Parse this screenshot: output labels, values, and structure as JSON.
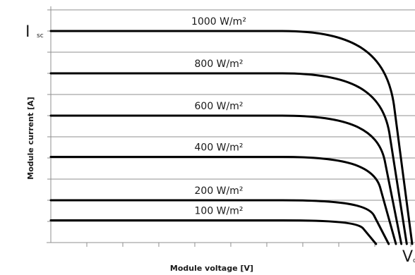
{
  "chart_data": {
    "type": "line",
    "title": "",
    "xlabel": "Module voltage [V]",
    "ylabel": "Module current [A]",
    "y_marker_label": "I",
    "y_marker_subscript": "sc",
    "x_marker_label": "V",
    "x_marker_subscript": "oc",
    "xlim": [
      0,
      1
    ],
    "ylim": [
      0,
      1.1
    ],
    "grid": true,
    "tick_labels": false,
    "series": [
      {
        "name": "1000 W/m²",
        "isc": 1.0,
        "voc": 1.0
      },
      {
        "name": "800 W/m²",
        "isc": 0.8,
        "voc": 0.985
      },
      {
        "name": "600 W/m²",
        "isc": 0.6,
        "voc": 0.97
      },
      {
        "name": "400 W/m²",
        "isc": 0.405,
        "voc": 0.955
      },
      {
        "name": "200 W/m²",
        "isc": 0.2,
        "voc": 0.935
      },
      {
        "name": "100 W/m²",
        "isc": 0.105,
        "voc": 0.9
      }
    ]
  }
}
